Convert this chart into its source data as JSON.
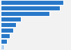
{
  "values": [
    660,
    620,
    510,
    215,
    160,
    130,
    95,
    65,
    35
  ],
  "bar_colors": [
    "#2878c8",
    "#2878c8",
    "#2878c8",
    "#2878c8",
    "#2878c8",
    "#2878c8",
    "#2878c8",
    "#2878c8",
    "#b0d0ee"
  ],
  "background_color": "#f2f2f2",
  "xlim": [
    0,
    730
  ]
}
